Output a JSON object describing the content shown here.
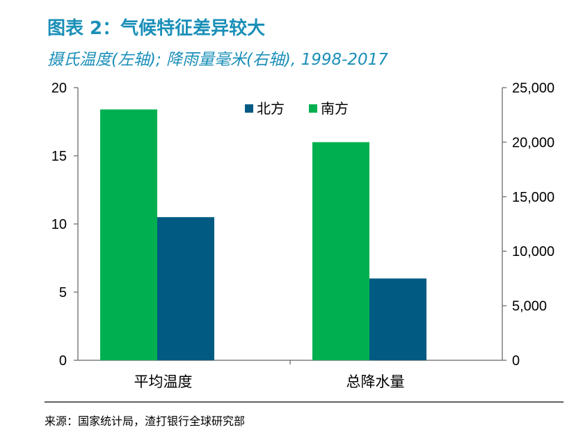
{
  "title": "图表 2：气候特征差异较大",
  "subtitle": "摄氏温度(左轴); 降雨量毫米(右轴), 1998-2017",
  "source": "来源：国家统计局，渣打银行全球研究部",
  "colors": {
    "north": "#005a82",
    "south": "#00b050",
    "axis": "#7f7f7f",
    "title": "#1a8fb8"
  },
  "chart_data": {
    "type": "bar",
    "categories": [
      "平均温度",
      "总降水量"
    ],
    "series": [
      {
        "name": "北方",
        "axis": "mixed",
        "values": [
          10.5,
          7500
        ]
      },
      {
        "name": "南方",
        "axis": "mixed",
        "values": [
          18.4,
          20000
        ]
      }
    ],
    "left_axis": {
      "ylim": [
        0,
        20
      ],
      "ticks": [
        0,
        5,
        10,
        15,
        20
      ],
      "tick_labels": [
        "0",
        "5",
        "10",
        "15",
        "20"
      ],
      "applies_to": "平均温度"
    },
    "right_axis": {
      "ylim": [
        0,
        25000
      ],
      "ticks": [
        0,
        5000,
        10000,
        15000,
        20000,
        25000
      ],
      "tick_labels": [
        "0",
        "5,000",
        "10,000",
        "15,000",
        "20,000",
        "25,000"
      ],
      "applies_to": "总降水量"
    },
    "legend": {
      "placement": "top-center",
      "entries": [
        "北方",
        "南方"
      ]
    },
    "grid": false
  }
}
